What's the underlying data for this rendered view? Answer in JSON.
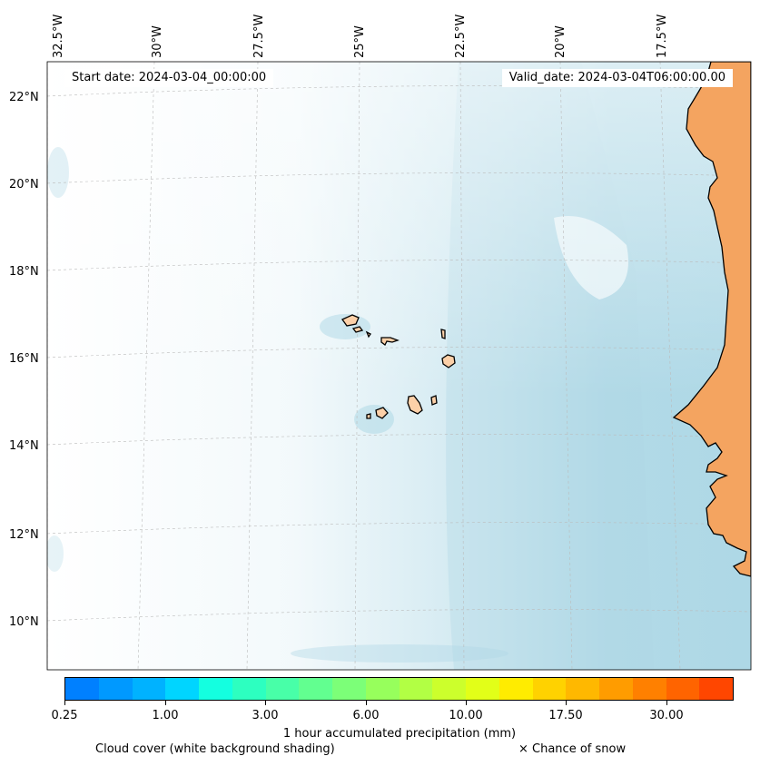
{
  "map": {
    "start_date": "Start date: 2024-03-04_00:00:00",
    "valid_date": "Valid_date: 2024-03-04T06:00:00.00",
    "longitude_labels": [
      "32.5°W",
      "30°W",
      "27.5°W",
      "25°W",
      "22.5°W",
      "20°W",
      "17.5°W"
    ],
    "latitude_labels": [
      "22°N",
      "20°N",
      "18°N",
      "16°N",
      "14°N",
      "12°N",
      "10°N"
    ],
    "land_color": "#f4a460",
    "island_color": "#fcd0a8",
    "ocean_cloud_color": "#aed8e6",
    "coastline_color": "#000000"
  },
  "colorbar": {
    "title": "1 hour accumulated precipitation (mm)",
    "tick_labels": [
      "0.25",
      "1.00",
      "3.00",
      "6.00",
      "10.00",
      "17.50",
      "30.00"
    ],
    "colors": [
      "#0080ff",
      "#0099ff",
      "#00b2ff",
      "#00d5ff",
      "#14ffe0",
      "#2dffc0",
      "#48ffa8",
      "#62ff90",
      "#7cff78",
      "#97ff5c",
      "#b2ff44",
      "#ccff2c",
      "#e2ff18",
      "#ffec00",
      "#ffd200",
      "#ffb800",
      "#ff9c00",
      "#ff8000",
      "#ff6400",
      "#ff4600"
    ]
  },
  "legend": {
    "cloud_note": "Cloud cover (white background shading)",
    "snow_note": "× Chance of snow"
  }
}
